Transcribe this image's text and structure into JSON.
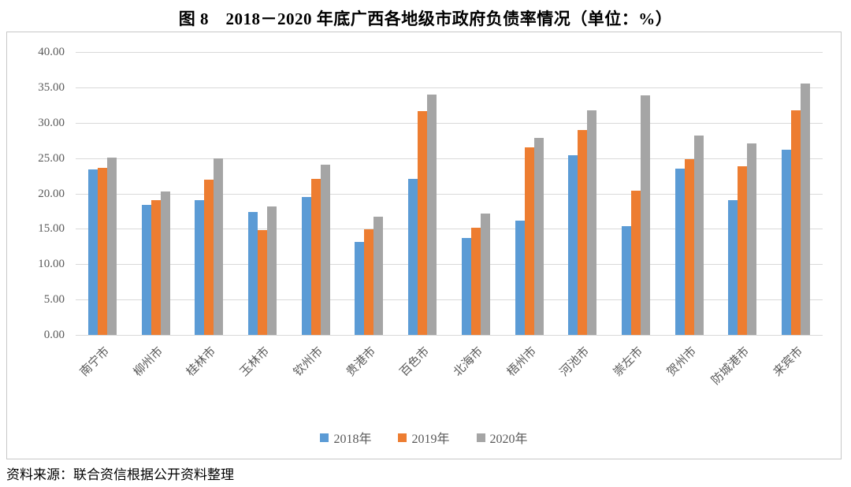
{
  "title": "图 8　2018－2020 年底广西各地级市政府负债率情况（单位：%）",
  "source_note": "资料来源：联合资信根据公开资料整理",
  "colors": {
    "series_2018": "#5B9BD5",
    "series_2019": "#ED7D31",
    "series_2020": "#A5A5A5",
    "gridline": "#D9D9D9",
    "axis_text": "#595959",
    "frame_border": "#C8C8C8"
  },
  "chart_data": {
    "type": "bar",
    "title": "图 8　2018－2020 年底广西各地级市政府负债率情况（单位：%）",
    "categories": [
      "南宁市",
      "柳州市",
      "桂林市",
      "玉林市",
      "钦州市",
      "贵港市",
      "百色市",
      "北海市",
      "梧州市",
      "河池市",
      "崇左市",
      "贺州市",
      "防城港市",
      "来宾市"
    ],
    "series": [
      {
        "name": "2018年",
        "color": "#5B9BD5",
        "values": [
          23.4,
          18.4,
          19.1,
          17.4,
          19.5,
          13.2,
          22.1,
          13.7,
          16.2,
          25.4,
          15.4,
          23.5,
          19.1,
          26.2
        ]
      },
      {
        "name": "2019年",
        "color": "#ED7D31",
        "values": [
          23.6,
          19.0,
          21.9,
          14.8,
          22.1,
          14.9,
          31.6,
          15.2,
          26.5,
          29.0,
          20.4,
          24.9,
          23.8,
          31.8
        ]
      },
      {
        "name": "2020年",
        "color": "#A5A5A5",
        "values": [
          25.1,
          20.3,
          25.0,
          18.2,
          24.1,
          16.7,
          34.0,
          17.2,
          27.8,
          31.8,
          33.9,
          28.2,
          27.1,
          35.5
        ]
      }
    ],
    "xlabel": "",
    "ylabel": "",
    "ylim": [
      0,
      40
    ],
    "yticks": [
      0,
      5,
      10,
      15,
      20,
      25,
      30,
      35,
      40
    ],
    "ytick_labels": [
      "0.00",
      "5.00",
      "10.00",
      "15.00",
      "20.00",
      "25.00",
      "30.00",
      "35.00",
      "40.00"
    ],
    "grid": true,
    "legend_position": "bottom"
  }
}
